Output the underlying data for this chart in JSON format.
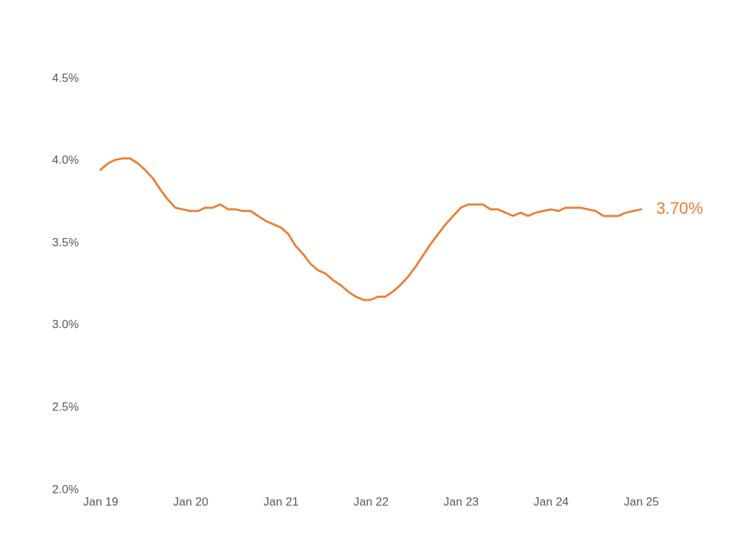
{
  "chart_data": {
    "type": "line",
    "x": [
      "2019-01",
      "2019-02",
      "2019-03",
      "2019-04",
      "2019-05",
      "2019-06",
      "2019-07",
      "2019-08",
      "2019-09",
      "2019-10",
      "2019-11",
      "2019-12",
      "2020-01",
      "2020-02",
      "2020-03",
      "2020-04",
      "2020-05",
      "2020-06",
      "2020-07",
      "2020-08",
      "2020-09",
      "2020-10",
      "2020-11",
      "2020-12",
      "2021-01",
      "2021-02",
      "2021-03",
      "2021-04",
      "2021-05",
      "2021-06",
      "2021-07",
      "2021-08",
      "2021-09",
      "2021-10",
      "2021-11",
      "2021-12",
      "2022-01",
      "2022-02",
      "2022-03",
      "2022-04",
      "2022-05",
      "2022-06",
      "2022-07",
      "2022-08",
      "2022-09",
      "2022-10",
      "2022-11",
      "2022-12",
      "2023-01",
      "2023-02",
      "2023-03",
      "2023-04",
      "2023-05",
      "2023-06",
      "2023-07",
      "2023-08",
      "2023-09",
      "2023-10",
      "2023-11",
      "2023-12",
      "2024-01",
      "2024-02",
      "2024-03",
      "2024-04",
      "2024-05",
      "2024-06",
      "2024-07",
      "2024-08",
      "2024-09",
      "2024-10",
      "2024-11",
      "2024-12",
      "2025-01"
    ],
    "series": [
      {
        "color": "#ed7d31",
        "values": [
          3.94,
          3.98,
          4.0,
          4.01,
          4.01,
          3.98,
          3.94,
          3.89,
          3.82,
          3.76,
          3.71,
          3.7,
          3.69,
          3.69,
          3.71,
          3.71,
          3.73,
          3.7,
          3.7,
          3.69,
          3.69,
          3.66,
          3.63,
          3.61,
          3.59,
          3.55,
          3.48,
          3.43,
          3.37,
          3.33,
          3.31,
          3.27,
          3.24,
          3.2,
          3.17,
          3.15,
          3.15,
          3.17,
          3.17,
          3.2,
          3.24,
          3.29,
          3.35,
          3.42,
          3.49,
          3.55,
          3.61,
          3.66,
          3.71,
          3.73,
          3.73,
          3.73,
          3.7,
          3.7,
          3.68,
          3.66,
          3.68,
          3.66,
          3.68,
          3.69,
          3.7,
          3.69,
          3.71,
          3.71,
          3.71,
          3.7,
          3.69,
          3.66,
          3.66,
          3.66,
          3.68,
          3.69,
          3.7
        ]
      }
    ],
    "annotations": [
      {
        "text": "3.70%",
        "x": "2025-01",
        "y": 3.7
      }
    ],
    "xlim": [
      "2019-01",
      "2025-01"
    ],
    "xticks": [
      {
        "value": "2019-01",
        "label": "Jan 19"
      },
      {
        "value": "2020-01",
        "label": "Jan 20"
      },
      {
        "value": "2021-01",
        "label": "Jan 21"
      },
      {
        "value": "2022-01",
        "label": "Jan 22"
      },
      {
        "value": "2023-01",
        "label": "Jan 23"
      },
      {
        "value": "2024-01",
        "label": "Jan 24"
      },
      {
        "value": "2025-01",
        "label": "Jan 25"
      }
    ],
    "ylim": [
      2.0,
      4.5
    ],
    "yticks": [
      {
        "value": 2.0,
        "label": "2.0%"
      },
      {
        "value": 2.5,
        "label": "2.5%"
      },
      {
        "value": 3.0,
        "label": "3.0%"
      },
      {
        "value": 3.5,
        "label": "3.5%"
      },
      {
        "value": 4.0,
        "label": "4.0%"
      },
      {
        "value": 4.5,
        "label": "4.5%"
      }
    ],
    "grid": false,
    "legend": false,
    "marker": "none",
    "line_style": "solid"
  }
}
